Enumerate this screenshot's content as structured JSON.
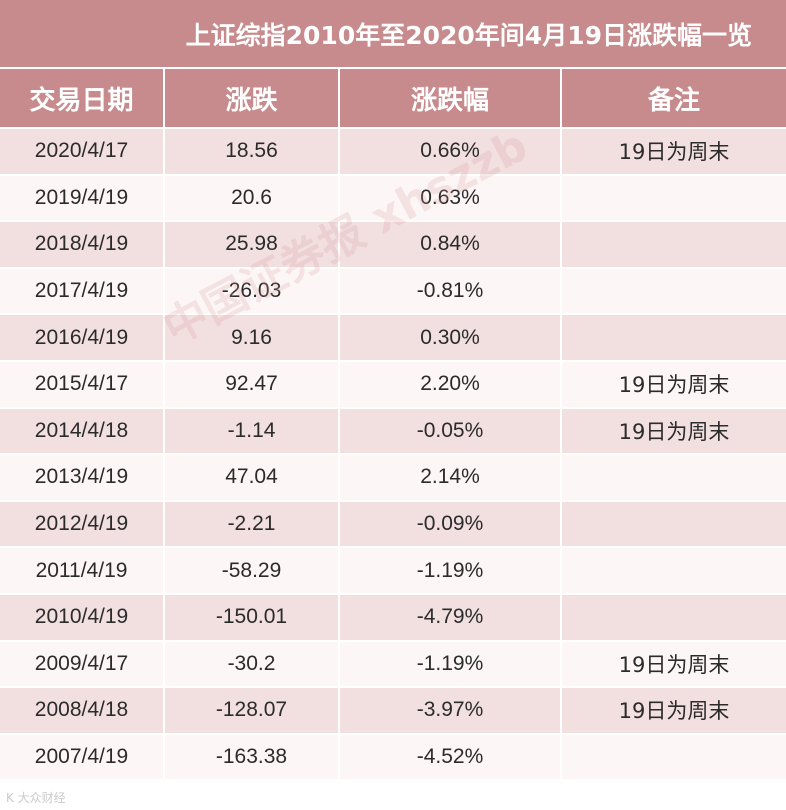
{
  "title": "上证综指2010年至2020年间4月19日涨跌幅一览",
  "columns": [
    "交易日期",
    "涨跌",
    "涨跌幅",
    "备注"
  ],
  "rows": [
    {
      "date": "2020/4/17",
      "change": "18.56",
      "pct": "0.66%",
      "note": "19日为周末"
    },
    {
      "date": "2019/4/19",
      "change": "20.6",
      "pct": "0.63%",
      "note": ""
    },
    {
      "date": "2018/4/19",
      "change": "25.98",
      "pct": "0.84%",
      "note": ""
    },
    {
      "date": "2017/4/19",
      "change": "-26.03",
      "pct": "-0.81%",
      "note": ""
    },
    {
      "date": "2016/4/19",
      "change": "9.16",
      "pct": "0.30%",
      "note": ""
    },
    {
      "date": "2015/4/17",
      "change": "92.47",
      "pct": "2.20%",
      "note": "19日为周末"
    },
    {
      "date": "2014/4/18",
      "change": "-1.14",
      "pct": "-0.05%",
      "note": "19日为周末"
    },
    {
      "date": "2013/4/19",
      "change": "47.04",
      "pct": "2.14%",
      "note": ""
    },
    {
      "date": "2012/4/19",
      "change": "-2.21",
      "pct": "-0.09%",
      "note": ""
    },
    {
      "date": "2011/4/19",
      "change": "-58.29",
      "pct": "-1.19%",
      "note": ""
    },
    {
      "date": "2010/4/19",
      "change": "-150.01",
      "pct": "-4.79%",
      "note": ""
    },
    {
      "date": "2009/4/17",
      "change": "-30.2",
      "pct": "-1.19%",
      "note": "19日为周末"
    },
    {
      "date": "2008/4/18",
      "change": "-128.07",
      "pct": "-3.97%",
      "note": "19日为周末"
    },
    {
      "date": "2007/4/19",
      "change": "-163.38",
      "pct": "-4.52%",
      "note": ""
    }
  ],
  "watermark": "中国证券报 xhszzb",
  "corner_mark": "K 大众财经",
  "colors": {
    "header_bg": "#c78b8d",
    "row_shade": "#f2dfe0",
    "row_plain": "#fdf6f6"
  }
}
